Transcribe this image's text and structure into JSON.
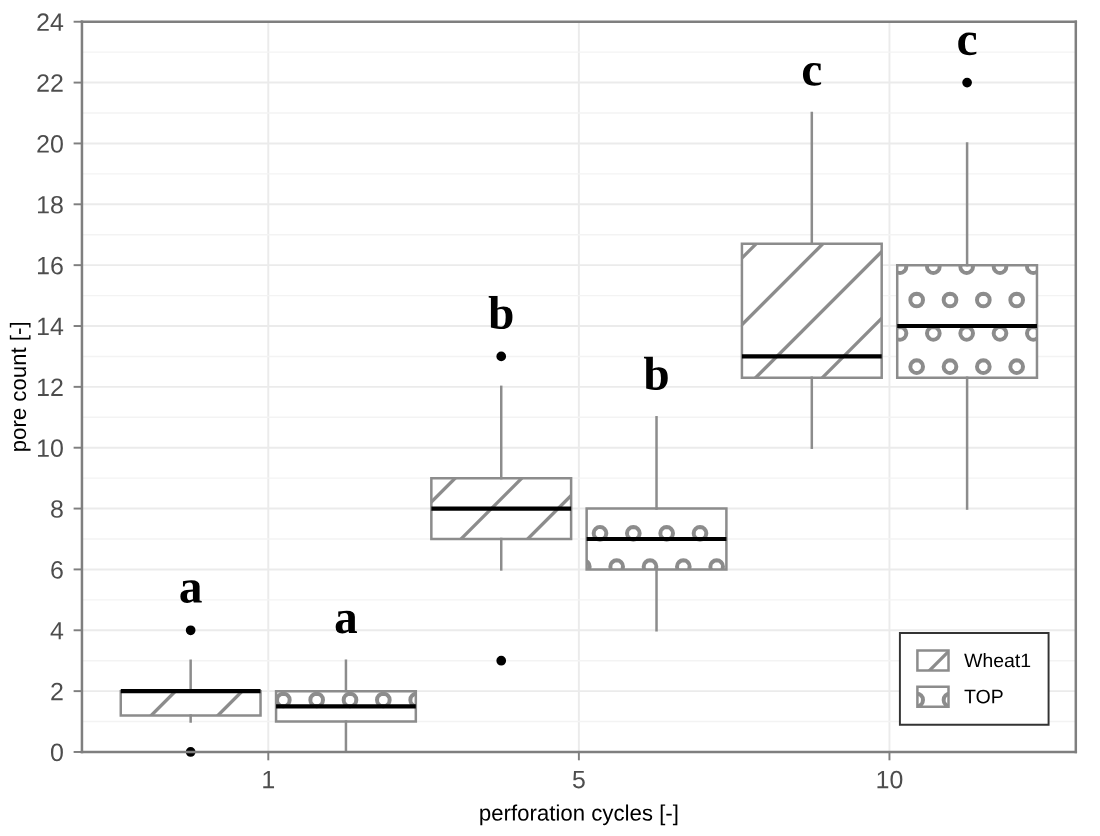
{
  "chart_data": {
    "type": "box",
    "xlabel": "perforation cycles [-]",
    "ylabel": "pore count [-]",
    "categories": [
      "1",
      "5",
      "10"
    ],
    "series": [
      {
        "name": "Wheat1",
        "color": "#8c8c8c",
        "boxes": [
          {
            "low": 1,
            "q1": 1.2,
            "median": 2,
            "q3": 2,
            "high": 3,
            "outliers": [
              4,
              0
            ]
          },
          {
            "low": 6,
            "q1": 7,
            "median": 8,
            "q3": 9,
            "high": 12,
            "outliers": [
              13,
              3
            ]
          },
          {
            "low": 10,
            "q1": 12.3,
            "median": 13,
            "q3": 16.7,
            "high": 21
          }
        ]
      },
      {
        "name": "TOP",
        "color": "#8c8c8c",
        "boxes": [
          {
            "low": 0,
            "q1": 1,
            "median": 1.5,
            "q3": 2,
            "high": 3
          },
          {
            "low": 4,
            "q1": 6,
            "median": 7,
            "q3": 8,
            "high": 11
          },
          {
            "low": 8,
            "q1": 12.3,
            "median": 14,
            "q3": 16,
            "high": 20,
            "outliers": [
              22
            ]
          }
        ]
      }
    ],
    "ylim": [
      0,
      24
    ],
    "yticks": [
      0,
      2,
      4,
      6,
      8,
      10,
      12,
      14,
      16,
      18,
      20,
      22,
      24
    ],
    "grid": true,
    "legend": "bottom right",
    "annotations": [
      "a",
      "a",
      "b",
      "b",
      "c",
      "c"
    ]
  }
}
